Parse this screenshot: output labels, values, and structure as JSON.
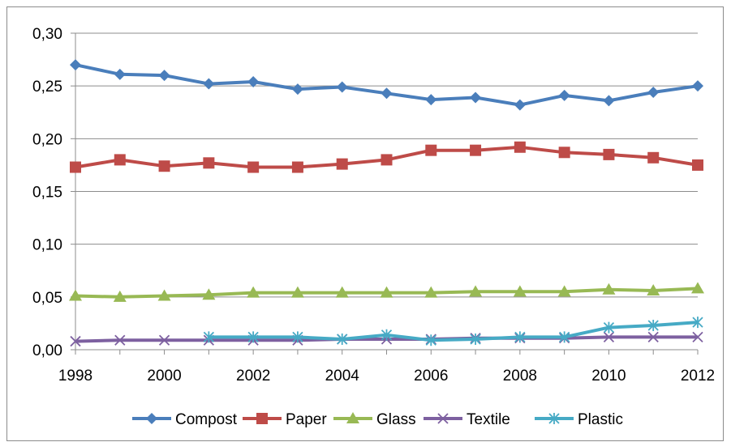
{
  "chart_data": {
    "type": "line",
    "title": "",
    "xlabel": "",
    "ylabel": "",
    "x": [
      1998,
      1999,
      2000,
      2001,
      2002,
      2003,
      2004,
      2005,
      2006,
      2007,
      2008,
      2009,
      2010,
      2011,
      2012
    ],
    "x_tick_labels": [
      "1998",
      "2000",
      "2002",
      "2004",
      "2006",
      "2008",
      "2010",
      "2012"
    ],
    "y_tick_labels": [
      "0,00",
      "0,05",
      "0,10",
      "0,15",
      "0,20",
      "0,25",
      "0,30"
    ],
    "ylim": [
      0,
      0.3
    ],
    "grid": "horizontal",
    "legend_position": "bottom",
    "series": [
      {
        "name": "Compost",
        "color": "#4a7ebb",
        "marker": "diamond",
        "values": [
          0.27,
          0.261,
          0.26,
          0.252,
          0.254,
          0.247,
          0.249,
          0.243,
          0.237,
          0.239,
          0.232,
          0.241,
          0.236,
          0.244,
          0.25
        ]
      },
      {
        "name": "Paper",
        "color": "#be4b48",
        "marker": "square",
        "values": [
          0.173,
          0.18,
          0.174,
          0.177,
          0.173,
          0.173,
          0.176,
          0.18,
          0.189,
          0.189,
          0.192,
          0.187,
          0.185,
          0.182,
          0.175
        ]
      },
      {
        "name": "Glass",
        "color": "#98b954",
        "marker": "triangle",
        "values": [
          0.051,
          0.05,
          0.051,
          0.052,
          0.054,
          0.054,
          0.054,
          0.054,
          0.054,
          0.055,
          0.055,
          0.055,
          0.057,
          0.056,
          0.058
        ]
      },
      {
        "name": "Textile",
        "color": "#7d60a0",
        "marker": "x",
        "values": [
          0.008,
          0.009,
          0.009,
          0.009,
          0.009,
          0.009,
          0.01,
          0.01,
          0.01,
          0.011,
          0.011,
          0.011,
          0.012,
          0.012,
          0.012
        ]
      },
      {
        "name": "Plastic",
        "color": "#46aac5",
        "marker": "asterisk",
        "values": [
          null,
          null,
          null,
          0.012,
          0.012,
          0.012,
          0.01,
          0.014,
          0.009,
          0.01,
          0.012,
          0.012,
          0.021,
          0.023,
          0.026
        ]
      }
    ]
  }
}
